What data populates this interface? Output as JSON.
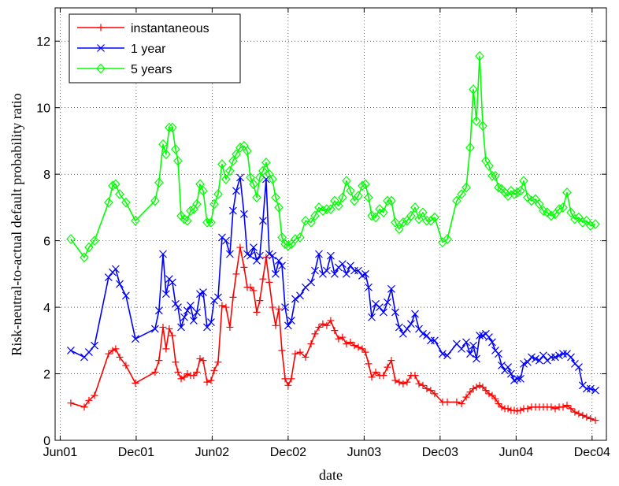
{
  "chart_data": {
    "type": "line",
    "xlabel": "date",
    "ylabel": "Risk-neutral-to-actual default probability ratio",
    "x": [
      0.84,
      1.9,
      2.27,
      2.71,
      3.82,
      4.14,
      4.38,
      4.7,
      5.19,
      5.94,
      7.49,
      7.8,
      8.12,
      8.36,
      8.61,
      8.86,
      9.11,
      9.3,
      9.55,
      9.8,
      10.04,
      10.29,
      10.54,
      10.79,
      11.04,
      11.29,
      11.6,
      11.91,
      12.16,
      12.47,
      12.78,
      13.09,
      13.4,
      13.65,
      13.9,
      14.21,
      14.52,
      14.77,
      15.02,
      15.27,
      15.52,
      15.76,
      16.01,
      16.26,
      16.51,
      16.76,
      17.01,
      17.26,
      17.51,
      17.76,
      18.0,
      18.25,
      18.56,
      18.94,
      19.37,
      19.81,
      20.12,
      20.43,
      20.74,
      21.05,
      21.36,
      21.67,
      21.98,
      22.29,
      22.6,
      22.92,
      23.23,
      23.54,
      23.85,
      24.1,
      24.35,
      24.6,
      24.91,
      25.22,
      25.53,
      25.84,
      26.15,
      26.46,
      26.77,
      27.08,
      27.39,
      27.7,
      28.02,
      28.33,
      28.64,
      28.95,
      29.26,
      29.57,
      30.19,
      30.57,
      31.31,
      31.69,
      32.06,
      32.37,
      32.62,
      32.87,
      33.12,
      33.37,
      33.61,
      33.86,
      34.11,
      34.36,
      34.61,
      34.86,
      35.11,
      35.36,
      35.6,
      35.85,
      36.1,
      36.35,
      36.6,
      36.91,
      37.22,
      37.53,
      37.84,
      38.15,
      38.46,
      38.77,
      39.09,
      39.4,
      39.71,
      40.02,
      40.33,
      40.64,
      40.95,
      41.26,
      41.57,
      41.88,
      42.26
    ],
    "series": [
      {
        "name": "instantaneous",
        "color": "#ff0000",
        "marker": "plus",
        "values": [
          1.12,
          1.0,
          1.2,
          1.35,
          2.6,
          2.7,
          2.75,
          2.5,
          2.25,
          1.72,
          2.05,
          2.4,
          3.4,
          2.75,
          3.35,
          3.15,
          2.35,
          2.05,
          1.85,
          1.9,
          2.0,
          1.95,
          1.95,
          2.05,
          2.45,
          2.4,
          1.75,
          1.8,
          2.1,
          2.35,
          4.05,
          4.0,
          3.4,
          4.3,
          5.0,
          5.8,
          5.2,
          4.6,
          4.6,
          4.5,
          3.85,
          4.2,
          4.85,
          5.5,
          4.75,
          4.0,
          3.45,
          3.95,
          2.7,
          1.85,
          1.65,
          1.85,
          2.6,
          2.65,
          2.5,
          2.9,
          3.2,
          3.4,
          3.5,
          3.45,
          3.6,
          3.3,
          3.05,
          3.1,
          2.9,
          2.95,
          2.85,
          2.8,
          2.75,
          2.65,
          2.3,
          1.9,
          2.05,
          1.95,
          1.95,
          2.2,
          2.4,
          1.8,
          1.75,
          1.7,
          1.75,
          1.95,
          1.95,
          1.7,
          1.65,
          1.55,
          1.5,
          1.4,
          1.15,
          1.15,
          1.15,
          1.1,
          1.3,
          1.45,
          1.55,
          1.6,
          1.65,
          1.6,
          1.5,
          1.4,
          1.35,
          1.25,
          1.1,
          1.0,
          0.95,
          0.95,
          0.9,
          0.9,
          0.88,
          0.9,
          0.95,
          0.95,
          1.0,
          1.0,
          1.0,
          1.0,
          1.0,
          1.0,
          0.95,
          1.0,
          1.0,
          1.05,
          0.95,
          0.85,
          0.8,
          0.75,
          0.7,
          0.65,
          0.6
        ]
      },
      {
        "name": "1 year",
        "color": "#0000ff",
        "marker": "x",
        "values": [
          2.7,
          2.5,
          2.65,
          2.85,
          4.9,
          5.05,
          5.15,
          4.7,
          4.35,
          3.05,
          3.35,
          3.9,
          5.6,
          4.4,
          4.85,
          4.75,
          4.1,
          4.0,
          3.4,
          3.7,
          3.9,
          4.05,
          3.6,
          3.85,
          4.4,
          4.45,
          3.4,
          3.55,
          4.2,
          4.3,
          6.1,
          6.0,
          5.6,
          6.9,
          7.5,
          7.9,
          6.8,
          5.6,
          5.55,
          5.8,
          5.4,
          5.55,
          6.6,
          7.85,
          5.6,
          5.55,
          5.0,
          5.4,
          5.25,
          4.0,
          3.45,
          3.6,
          4.25,
          4.35,
          4.6,
          4.75,
          5.1,
          5.6,
          5.0,
          5.1,
          5.55,
          5.0,
          5.2,
          5.3,
          5.0,
          5.25,
          5.1,
          5.1,
          4.95,
          5.0,
          4.6,
          3.7,
          4.1,
          4.0,
          3.85,
          4.15,
          4.55,
          3.85,
          3.4,
          3.2,
          3.35,
          3.5,
          3.8,
          3.35,
          3.2,
          3.15,
          3.0,
          3.0,
          2.6,
          2.55,
          2.9,
          2.75,
          2.95,
          2.6,
          2.85,
          2.45,
          3.15,
          3.15,
          3.2,
          3.1,
          2.95,
          2.7,
          2.6,
          2.25,
          2.1,
          2.2,
          2.0,
          1.8,
          1.85,
          1.85,
          2.3,
          2.35,
          2.5,
          2.45,
          2.4,
          2.55,
          2.4,
          2.5,
          2.5,
          2.55,
          2.6,
          2.6,
          2.5,
          2.3,
          2.2,
          1.65,
          1.55,
          1.55,
          1.5
        ]
      },
      {
        "name": "5 years",
        "color": "#00ff00",
        "marker": "diamond",
        "values": [
          6.05,
          5.5,
          5.8,
          6.0,
          7.15,
          7.65,
          7.7,
          7.4,
          7.15,
          6.6,
          7.2,
          7.75,
          8.9,
          8.6,
          9.4,
          9.4,
          8.75,
          8.4,
          6.75,
          6.65,
          6.6,
          6.9,
          6.95,
          7.1,
          7.7,
          7.5,
          6.55,
          6.55,
          7.1,
          7.4,
          8.3,
          7.85,
          8.1,
          8.4,
          8.6,
          8.8,
          8.85,
          8.7,
          7.9,
          7.7,
          7.3,
          7.9,
          8.1,
          8.35,
          8.0,
          7.85,
          7.3,
          7.0,
          6.1,
          5.9,
          5.85,
          5.9,
          6.05,
          6.1,
          6.6,
          6.55,
          6.75,
          7.0,
          6.9,
          6.95,
          6.95,
          7.2,
          7.05,
          7.3,
          7.8,
          7.5,
          7.2,
          7.35,
          7.65,
          7.7,
          7.3,
          6.75,
          6.7,
          6.95,
          6.85,
          7.2,
          7.2,
          6.55,
          6.35,
          6.55,
          6.6,
          6.75,
          7.0,
          6.65,
          6.85,
          6.6,
          6.6,
          6.7,
          5.95,
          6.05,
          7.2,
          7.4,
          7.6,
          8.8,
          10.55,
          9.6,
          11.55,
          9.45,
          8.4,
          8.25,
          7.95,
          7.95,
          7.6,
          7.55,
          7.45,
          7.35,
          7.5,
          7.4,
          7.45,
          7.5,
          7.8,
          7.3,
          7.2,
          7.25,
          7.1,
          6.9,
          6.85,
          6.75,
          6.8,
          6.95,
          7.0,
          7.45,
          6.85,
          6.65,
          6.7,
          6.55,
          6.6,
          6.45,
          6.5
        ]
      }
    ],
    "xlim": [
      -0.4,
      43.13
    ],
    "xticks": [
      {
        "value": 0,
        "label": "Jun01"
      },
      {
        "value": 6,
        "label": "Dec01"
      },
      {
        "value": 12,
        "label": "Jun02"
      },
      {
        "value": 18,
        "label": "Dec02"
      },
      {
        "value": 24,
        "label": "Jun03"
      },
      {
        "value": 30,
        "label": "Dec03"
      },
      {
        "value": 36,
        "label": "Jun04"
      },
      {
        "value": 42,
        "label": "Dec04"
      }
    ],
    "ylim": [
      0,
      13
    ],
    "yticks": [
      0,
      2,
      4,
      6,
      8,
      10,
      12
    ],
    "grid": true,
    "legend": "upper left"
  }
}
